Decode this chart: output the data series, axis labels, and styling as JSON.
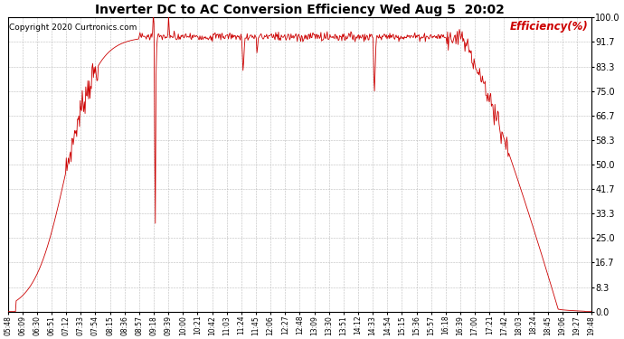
{
  "title": "Inverter DC to AC Conversion Efficiency Wed Aug 5  20:02",
  "copyright": "Copyright 2020 Curtronics.com",
  "ylabel": "Efficiency(%)",
  "background_color": "#ffffff",
  "plot_bg_color": "#ffffff",
  "line_color": "#cc0000",
  "title_fontsize": 11,
  "ylabel_color": "#cc0000",
  "yticks": [
    0.0,
    8.3,
    16.7,
    25.0,
    33.3,
    41.7,
    50.0,
    58.3,
    66.7,
    75.0,
    83.3,
    91.7,
    100.0
  ],
  "ymin": 0.0,
  "ymax": 100.0,
  "xtick_labels": [
    "05:48",
    "06:09",
    "06:30",
    "06:51",
    "07:12",
    "07:33",
    "07:54",
    "08:15",
    "08:36",
    "08:57",
    "09:18",
    "09:39",
    "10:00",
    "10:21",
    "10:42",
    "11:03",
    "11:24",
    "11:45",
    "12:06",
    "12:27",
    "12:48",
    "13:09",
    "13:30",
    "13:51",
    "14:12",
    "14:33",
    "14:54",
    "15:15",
    "15:36",
    "15:57",
    "16:18",
    "16:39",
    "17:00",
    "17:21",
    "17:42",
    "18:03",
    "18:24",
    "18:45",
    "19:06",
    "19:27",
    "19:48"
  ]
}
